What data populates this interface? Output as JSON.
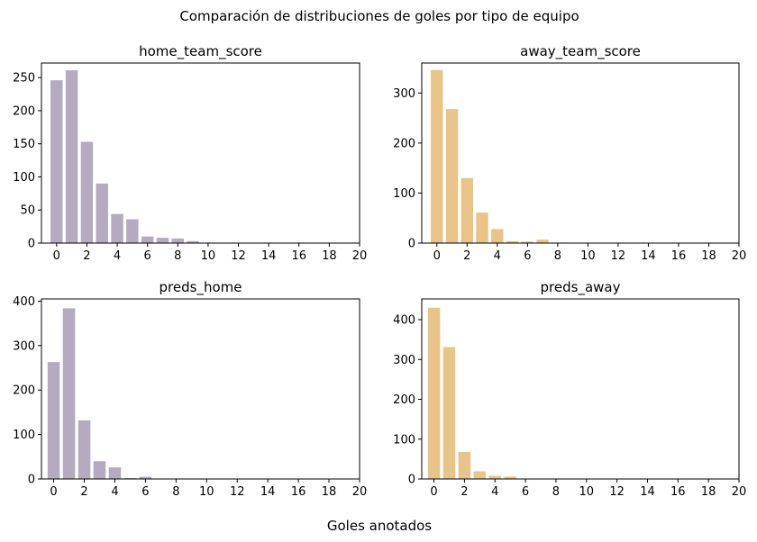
{
  "figure": {
    "suptitle": "Comparación de distribuciones de goles por tipo de equipo",
    "supxlabel": "Goles anotados"
  },
  "colors": {
    "home": "#b5abc0",
    "away": "#e8c488"
  },
  "chart_data": [
    {
      "type": "bar",
      "title": "home_team_score",
      "color": "#b5abc0",
      "xlim": [
        -1,
        20
      ],
      "ylim": [
        0,
        272
      ],
      "xticks": [
        0,
        2,
        4,
        6,
        8,
        10,
        12,
        14,
        16,
        18,
        20
      ],
      "yticks": [
        0,
        50,
        100,
        150,
        200,
        250
      ],
      "x": [
        0,
        1,
        2,
        3,
        4,
        5,
        6,
        7,
        8,
        9
      ],
      "values": [
        246,
        261,
        153,
        90,
        44,
        36,
        10,
        8,
        7,
        3
      ]
    },
    {
      "type": "bar",
      "title": "away_team_score",
      "color": "#e8c488",
      "xlim": [
        -1,
        20
      ],
      "ylim": [
        0,
        360
      ],
      "xticks": [
        0,
        2,
        4,
        6,
        8,
        10,
        12,
        14,
        16,
        18,
        20
      ],
      "yticks": [
        0,
        100,
        200,
        300
      ],
      "x": [
        0,
        1,
        2,
        3,
        4,
        5,
        6,
        7,
        8
      ],
      "values": [
        346,
        268,
        130,
        61,
        28,
        4,
        3,
        7,
        1
      ]
    },
    {
      "type": "bar",
      "title": "preds_home",
      "color": "#b5abc0",
      "xlim": [
        -0.8,
        20
      ],
      "ylim": [
        0,
        405
      ],
      "xticks": [
        0,
        2,
        4,
        6,
        8,
        10,
        12,
        14,
        16,
        18,
        20
      ],
      "yticks": [
        0,
        100,
        200,
        300,
        400
      ],
      "x": [
        0,
        1,
        2,
        3,
        4,
        5,
        6
      ],
      "values": [
        263,
        384,
        132,
        40,
        26,
        2,
        5
      ]
    },
    {
      "type": "bar",
      "title": "preds_away",
      "color": "#e8c488",
      "xlim": [
        -0.8,
        20
      ],
      "ylim": [
        0,
        452
      ],
      "xticks": [
        0,
        2,
        4,
        6,
        8,
        10,
        12,
        14,
        16,
        18,
        20
      ],
      "yticks": [
        0,
        100,
        200,
        300,
        400
      ],
      "x": [
        0,
        1,
        2,
        3,
        4,
        5
      ],
      "values": [
        430,
        331,
        68,
        19,
        8,
        6
      ]
    }
  ]
}
